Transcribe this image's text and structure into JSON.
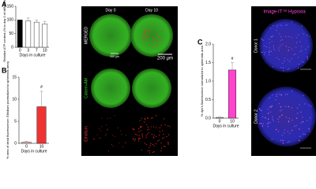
{
  "panel_labels": [
    "A",
    "B",
    "C"
  ],
  "chart_data": [
    {
      "type": "bar",
      "y_label": "Relative ATP content (% to day 0 of differentiation)",
      "x_label": "Days in culture",
      "categories": [
        "0",
        "3",
        "7",
        "10"
      ],
      "values": [
        100,
        97,
        92,
        85
      ],
      "errors": [
        0,
        10,
        8,
        10
      ],
      "colors": [
        "#000000",
        "#ffffff",
        "#ffffff",
        "#ffffff"
      ],
      "ylim": [
        0,
        150
      ],
      "yticks": [
        0,
        50,
        100,
        150
      ]
    },
    {
      "type": "bar",
      "y_label": "% area of dead fluorescence: Ethidium (normalized to spheroids area)",
      "x_label": "Days in culture",
      "categories": [
        "0",
        "10"
      ],
      "values": [
        0.3,
        8.3
      ],
      "errors": [
        0.2,
        3.5
      ],
      "annotation": "#",
      "colors": [
        "#ffd0d0",
        "#ee3333"
      ],
      "ylim": [
        0,
        15
      ],
      "yticks": [
        0,
        5,
        10,
        15
      ]
    },
    {
      "type": "bar",
      "y_label": "% dye's fluorescence normalized to spheroids area",
      "x_label": "Days in culture",
      "categories": [
        "0",
        "10"
      ],
      "values": [
        0.02,
        1.3
      ],
      "errors": [
        0.01,
        0.2
      ],
      "annotation": "#",
      "colors": [
        "#ffc0ee",
        "#ff44cc"
      ],
      "ylim": [
        0,
        2
      ],
      "yticks": [
        {
          "value": 0,
          "label": "0.0"
        },
        {
          "value": 0.5,
          "label": "0.5"
        },
        {
          "value": 1,
          "label": "1.0"
        },
        {
          "value": 1.5,
          "label": "1.5"
        },
        {
          "value": 2,
          "label": "2.0"
        }
      ]
    }
  ],
  "images": {
    "day_labels": [
      "Day 0",
      "Day 10"
    ],
    "row_labels": [
      "MERGED",
      "Calcein-AM",
      "Ethidium"
    ],
    "scale_bars": [
      "200 µm",
      "200 µm"
    ],
    "hypoxia_title": "Image-IT™ Hypoxia",
    "donors": [
      "Donor 1",
      "Donor 2"
    ]
  }
}
